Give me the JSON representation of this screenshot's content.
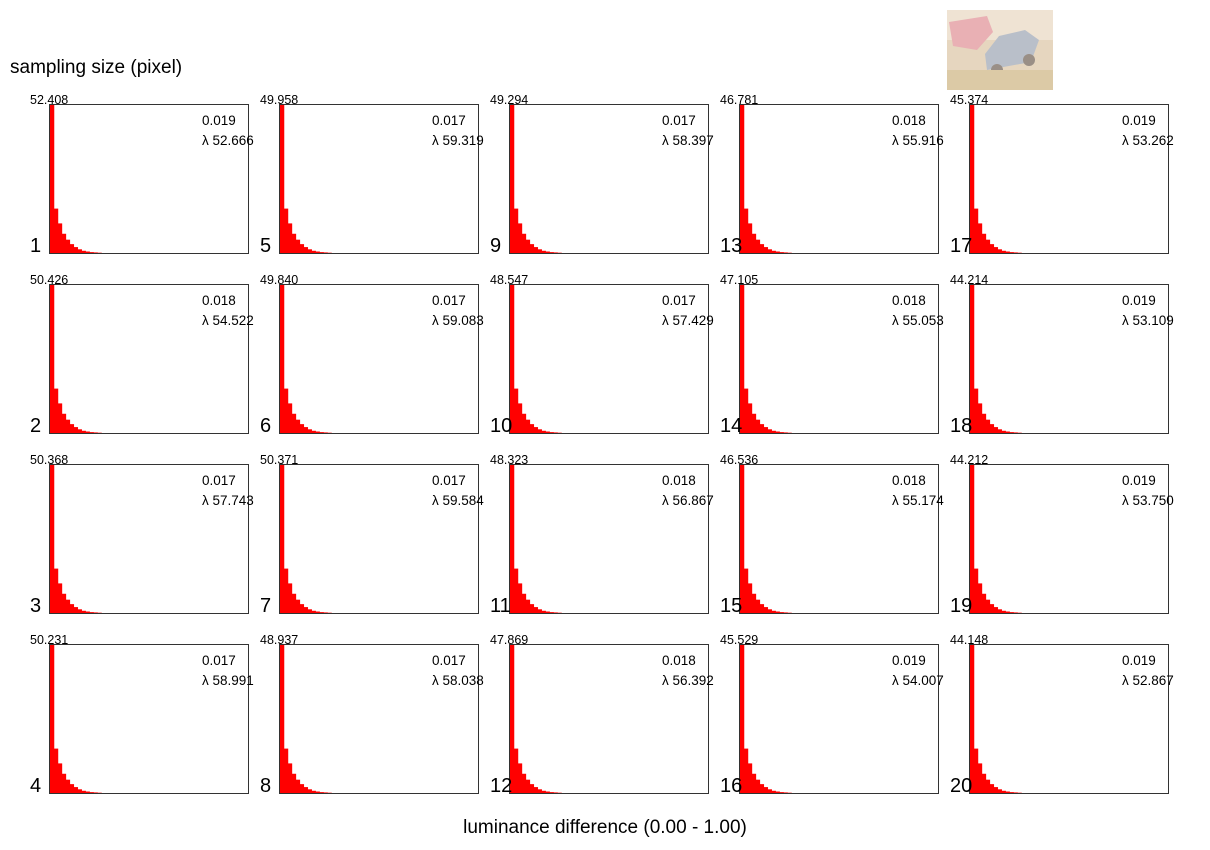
{
  "ylabel": "sampling size (pixel)",
  "xlabel": "luminance difference (0.00 - 1.00)",
  "thumbnail": {
    "icon": "car-photo-thumbnail",
    "tint": "#e8c9b8"
  },
  "bar_color": "#ff0000",
  "chart_data": {
    "type": "bar",
    "xlabel": "luminance difference (0.00 - 1.00)",
    "ylabel": "sampling size (pixel)",
    "xlim": [
      0,
      1
    ],
    "bins": 50,
    "grid": false,
    "histogram_profile": [
      1.0,
      0.3,
      0.2,
      0.13,
      0.09,
      0.06,
      0.04,
      0.025,
      0.015,
      0.01,
      0.006,
      0.004,
      0.002
    ],
    "panels": [
      {
        "index": "1",
        "peak": "52.408",
        "stat": "0.019",
        "lambda": "λ 52.666"
      },
      {
        "index": "2",
        "peak": "50.426",
        "stat": "0.018",
        "lambda": "λ 54.522"
      },
      {
        "index": "3",
        "peak": "50.368",
        "stat": "0.017",
        "lambda": "λ 57.743"
      },
      {
        "index": "4",
        "peak": "50.231",
        "stat": "0.017",
        "lambda": "λ 58.991"
      },
      {
        "index": "5",
        "peak": "49.958",
        "stat": "0.017",
        "lambda": "λ 59.319"
      },
      {
        "index": "6",
        "peak": "49.840",
        "stat": "0.017",
        "lambda": "λ 59.083"
      },
      {
        "index": "7",
        "peak": "50.371",
        "stat": "0.017",
        "lambda": "λ 59.584"
      },
      {
        "index": "8",
        "peak": "48.937",
        "stat": "0.017",
        "lambda": "λ 58.038"
      },
      {
        "index": "9",
        "peak": "49.294",
        "stat": "0.017",
        "lambda": "λ 58.397"
      },
      {
        "index": "10",
        "peak": "48.547",
        "stat": "0.017",
        "lambda": "λ 57.429"
      },
      {
        "index": "11",
        "peak": "48.323",
        "stat": "0.018",
        "lambda": "λ 56.867"
      },
      {
        "index": "12",
        "peak": "47.869",
        "stat": "0.018",
        "lambda": "λ 56.392"
      },
      {
        "index": "13",
        "peak": "46.781",
        "stat": "0.018",
        "lambda": "λ 55.916"
      },
      {
        "index": "14",
        "peak": "47.105",
        "stat": "0.018",
        "lambda": "λ 55.053"
      },
      {
        "index": "15",
        "peak": "46.536",
        "stat": "0.018",
        "lambda": "λ 55.174"
      },
      {
        "index": "16",
        "peak": "45.529",
        "stat": "0.019",
        "lambda": "λ 54.007"
      },
      {
        "index": "17",
        "peak": "45.374",
        "stat": "0.019",
        "lambda": "λ 53.262"
      },
      {
        "index": "18",
        "peak": "44.214",
        "stat": "0.019",
        "lambda": "λ 53.109"
      },
      {
        "index": "19",
        "peak": "44.212",
        "stat": "0.019",
        "lambda": "λ 53.750"
      },
      {
        "index": "20",
        "peak": "44.148",
        "stat": "0.019",
        "lambda": "λ 52.867"
      }
    ]
  }
}
